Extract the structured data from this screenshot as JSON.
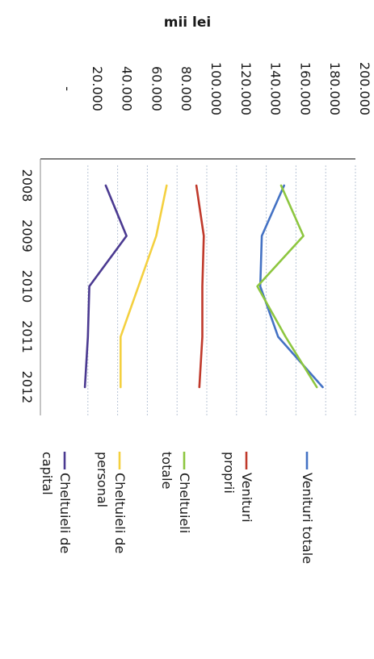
{
  "chart_data": {
    "type": "line",
    "unit_label": "mii   lei",
    "categories": [
      "2008",
      "2009",
      "2010",
      "2011",
      "2012"
    ],
    "y_ticks": [
      "-",
      "20.000",
      "40.000",
      "60.000",
      "80.000",
      "100.000",
      "120.000",
      "140.000",
      "160.000",
      "180.000",
      "200.000"
    ],
    "ylim": [
      0,
      200000
    ],
    "grid": true,
    "legend_position": "right",
    "series": [
      {
        "name": "Venituri totale",
        "color": "#4472C4",
        "values": [
          152000,
          137000,
          136000,
          148000,
          178000
        ]
      },
      {
        "name": "Venituri proprii",
        "color": "#C0392B",
        "values": [
          93000,
          98000,
          97000,
          97000,
          95000
        ]
      },
      {
        "name": "Cheltuieli totale",
        "color": "#8DC63F",
        "values": [
          150000,
          165000,
          134000,
          153000,
          174000
        ]
      },
      {
        "name": "Cheltuieli de personal",
        "color": "#F4D03F",
        "values": [
          73000,
          66000,
          54000,
          42000,
          42000
        ]
      },
      {
        "name": "Cheltuieli de capital",
        "color": "#4B3A91",
        "values": [
          32000,
          46000,
          21000,
          20000,
          18000
        ]
      }
    ]
  }
}
